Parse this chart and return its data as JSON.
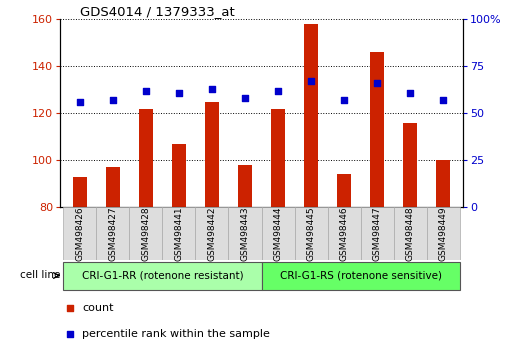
{
  "title": "GDS4014 / 1379333_at",
  "samples": [
    "GSM498426",
    "GSM498427",
    "GSM498428",
    "GSM498441",
    "GSM498442",
    "GSM498443",
    "GSM498444",
    "GSM498445",
    "GSM498446",
    "GSM498447",
    "GSM498448",
    "GSM498449"
  ],
  "counts": [
    93,
    97,
    122,
    107,
    125,
    98,
    122,
    158,
    94,
    146,
    116,
    100
  ],
  "percentiles": [
    56,
    57,
    62,
    61,
    63,
    58,
    62,
    67,
    57,
    66,
    61,
    57
  ],
  "ylim_left": [
    80,
    160
  ],
  "ylim_right": [
    0,
    100
  ],
  "yticks_left": [
    80,
    100,
    120,
    140,
    160
  ],
  "yticks_right": [
    0,
    25,
    50,
    75,
    100
  ],
  "group1_label": "CRI-G1-RR (rotenone resistant)",
  "group2_label": "CRI-G1-RS (rotenone sensitive)",
  "group1_count": 6,
  "group2_count": 6,
  "bar_color": "#cc2200",
  "dot_color": "#0000cc",
  "group1_bg": "#aaffaa",
  "group2_bg": "#66ff66",
  "xlabel_bg": "#dddddd",
  "legend_count_label": "count",
  "legend_pct_label": "percentile rank within the sample",
  "bar_width": 0.45,
  "dot_size": 25,
  "fig_width": 5.23,
  "fig_height": 3.54
}
